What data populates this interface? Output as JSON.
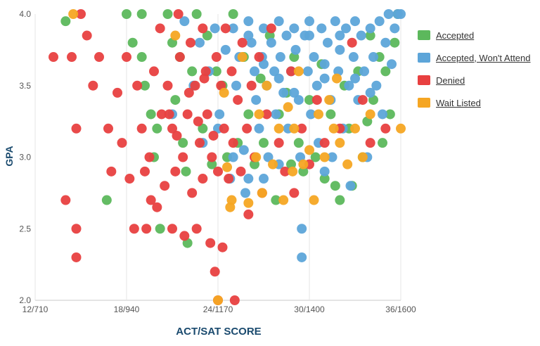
{
  "chart_data": {
    "type": "scatter",
    "title": "",
    "xlabel": "ACT/SAT SCORE",
    "ylabel": "GPA",
    "x_ticks": [
      "12/710",
      "18/940",
      "24/1170",
      "30/1400",
      "36/1600"
    ],
    "x_tick_values": [
      12,
      18,
      24,
      30,
      36
    ],
    "y_ticks": [
      "2.0",
      "2.5",
      "3.0",
      "3.5",
      "4.0"
    ],
    "y_tick_values": [
      2.0,
      2.5,
      3.0,
      3.5,
      4.0
    ],
    "xlim": [
      12,
      36
    ],
    "ylim": [
      2.0,
      4.0
    ],
    "x_unit": "ACT composite (SAT equivalent)",
    "grid": "vertical lines at x ticks",
    "legend_position": "right",
    "series": [
      {
        "name": "Accepted",
        "color": "#5cb85c",
        "points": [
          [
            14,
            3.95
          ],
          [
            16.7,
            2.7
          ],
          [
            18,
            4.0
          ],
          [
            18.4,
            3.8
          ],
          [
            19,
            4.0
          ],
          [
            19,
            3.7
          ],
          [
            19.2,
            3.5
          ],
          [
            19.6,
            3.3
          ],
          [
            19.8,
            3.0
          ],
          [
            20,
            3.2
          ],
          [
            20.2,
            2.5
          ],
          [
            20.7,
            4.0
          ],
          [
            21,
            3.8
          ],
          [
            21.2,
            3.4
          ],
          [
            21.5,
            3.7
          ],
          [
            21.7,
            3.1
          ],
          [
            21.9,
            2.9
          ],
          [
            22,
            2.4
          ],
          [
            22.3,
            3.6
          ],
          [
            22.6,
            4.0
          ],
          [
            23,
            3.2
          ],
          [
            23.3,
            3.85
          ],
          [
            23.6,
            2.95
          ],
          [
            23.9,
            3.6
          ],
          [
            24.3,
            3.5
          ],
          [
            24.6,
            3.0
          ],
          [
            25,
            4.0
          ],
          [
            25.3,
            3.1
          ],
          [
            25.7,
            3.7
          ],
          [
            26,
            3.3
          ],
          [
            26.4,
            2.95
          ],
          [
            26.8,
            3.55
          ],
          [
            27,
            3.1
          ],
          [
            27.4,
            3.85
          ],
          [
            27.8,
            2.7
          ],
          [
            28,
            3.3
          ],
          [
            28.5,
            3.45
          ],
          [
            28.8,
            2.95
          ],
          [
            29,
            3.7
          ],
          [
            29.3,
            3.1
          ],
          [
            29.6,
            2.9
          ],
          [
            30,
            3.4
          ],
          [
            30.4,
            3.0
          ],
          [
            30.8,
            3.65
          ],
          [
            31,
            2.85
          ],
          [
            31.4,
            3.3
          ],
          [
            31.7,
            2.8
          ],
          [
            32,
            2.7
          ],
          [
            32.3,
            3.5
          ],
          [
            32.6,
            3.2
          ],
          [
            32.8,
            2.8
          ],
          [
            33.2,
            3.6
          ],
          [
            33.5,
            3.0
          ],
          [
            33.8,
            3.25
          ],
          [
            34,
            3.85
          ],
          [
            34.2,
            3.4
          ],
          [
            34.6,
            3.7
          ],
          [
            34.8,
            3.1
          ],
          [
            35,
            3.6
          ],
          [
            35.3,
            3.3
          ],
          [
            35.6,
            3.8
          ],
          [
            35.8,
            4.0
          ]
        ]
      },
      {
        "name": "Accepted, Won't Attend",
        "color": "#5da5d9",
        "points": [
          [
            21,
            3.3
          ],
          [
            21.8,
            3.95
          ],
          [
            22.4,
            3.5
          ],
          [
            22.8,
            3.8
          ],
          [
            23,
            3.1
          ],
          [
            23.4,
            3.6
          ],
          [
            23.8,
            3.9
          ],
          [
            24.1,
            3.3
          ],
          [
            24.5,
            3.75
          ],
          [
            24.8,
            2.85
          ],
          [
            25,
            3.9
          ],
          [
            25.2,
            3.5
          ],
          [
            25.4,
            3.7
          ],
          [
            25.7,
            3.05
          ],
          [
            25.8,
            2.75
          ],
          [
            26,
            3.95
          ],
          [
            26.2,
            3.8
          ],
          [
            26.4,
            3.6
          ],
          [
            26.5,
            3.4
          ],
          [
            26.7,
            3.2
          ],
          [
            26.9,
            3.7
          ],
          [
            27,
            3.9
          ],
          [
            27.2,
            3.5
          ],
          [
            27.3,
            3.0
          ],
          [
            27.5,
            3.8
          ],
          [
            27.7,
            3.6
          ],
          [
            27.8,
            3.3
          ],
          [
            28,
            3.95
          ],
          [
            28.1,
            3.7
          ],
          [
            28.3,
            3.45
          ],
          [
            28.5,
            3.85
          ],
          [
            28.6,
            3.2
          ],
          [
            28.8,
            3.6
          ],
          [
            29,
            3.9
          ],
          [
            29.1,
            3.75
          ],
          [
            29.3,
            3.4
          ],
          [
            29.4,
            3.0
          ],
          [
            29.5,
            2.3
          ],
          [
            29.5,
            2.5
          ],
          [
            29.7,
            3.85
          ],
          [
            29.9,
            3.6
          ],
          [
            30,
            3.95
          ],
          [
            30.1,
            3.3
          ],
          [
            30.3,
            3.7
          ],
          [
            30.5,
            3.5
          ],
          [
            30.6,
            3.1
          ],
          [
            30.8,
            3.9
          ],
          [
            31,
            3.65
          ],
          [
            31,
            2.9
          ],
          [
            31.2,
            3.8
          ],
          [
            31.4,
            3.4
          ],
          [
            31.5,
            3.0
          ],
          [
            31.7,
            3.95
          ],
          [
            31.9,
            3.6
          ],
          [
            32,
            3.75
          ],
          [
            32.2,
            3.2
          ],
          [
            32.4,
            3.9
          ],
          [
            32.6,
            3.5
          ],
          [
            32.7,
            2.8
          ],
          [
            32.9,
            3.7
          ],
          [
            33,
            3.95
          ],
          [
            33.2,
            3.4
          ],
          [
            33.4,
            3.85
          ],
          [
            33.6,
            3.6
          ],
          [
            33.8,
            3.0
          ],
          [
            34,
            3.9
          ],
          [
            34.2,
            3.7
          ],
          [
            34.4,
            3.5
          ],
          [
            34.6,
            3.95
          ],
          [
            34.8,
            3.3
          ],
          [
            35,
            3.8
          ],
          [
            35.2,
            4.0
          ],
          [
            35.4,
            3.65
          ],
          [
            35.6,
            3.9
          ],
          [
            35.8,
            4.0
          ],
          [
            36,
            4.0
          ],
          [
            26,
            3.85
          ],
          [
            27,
            3.65
          ],
          [
            28,
            3.55
          ],
          [
            29,
            3.45
          ],
          [
            30,
            3.85
          ],
          [
            31,
            3.55
          ],
          [
            32,
            3.85
          ],
          [
            33,
            3.55
          ],
          [
            34,
            3.45
          ],
          [
            24,
            3.2
          ],
          [
            25,
            3.0
          ],
          [
            26,
            2.85
          ],
          [
            27,
            2.85
          ],
          [
            28,
            2.95
          ]
        ]
      },
      {
        "name": "Denied",
        "color": "#e84040",
        "points": [
          [
            13.2,
            3.7
          ],
          [
            14,
            2.7
          ],
          [
            14.4,
            3.7
          ],
          [
            14.7,
            2.5
          ],
          [
            14.7,
            2.3
          ],
          [
            14.7,
            3.2
          ],
          [
            15,
            4.0
          ],
          [
            15.4,
            3.85
          ],
          [
            15.8,
            3.5
          ],
          [
            16.2,
            3.7
          ],
          [
            16.8,
            3.2
          ],
          [
            17,
            2.9
          ],
          [
            17.4,
            3.45
          ],
          [
            17.7,
            3.1
          ],
          [
            18,
            3.7
          ],
          [
            18.2,
            2.85
          ],
          [
            18.5,
            2.5
          ],
          [
            18.7,
            3.5
          ],
          [
            19,
            3.2
          ],
          [
            19.2,
            2.9
          ],
          [
            19.3,
            2.5
          ],
          [
            19.5,
            3.0
          ],
          [
            19.6,
            2.7
          ],
          [
            19.8,
            3.6
          ],
          [
            20,
            2.65
          ],
          [
            20.2,
            3.9
          ],
          [
            20.3,
            3.3
          ],
          [
            20.5,
            2.8
          ],
          [
            20.7,
            3.5
          ],
          [
            21,
            3.2
          ],
          [
            21,
            2.5
          ],
          [
            21.2,
            2.9
          ],
          [
            21.4,
            4.0
          ],
          [
            21.5,
            3.7
          ],
          [
            21.7,
            3.0
          ],
          [
            21.8,
            2.45
          ],
          [
            22,
            3.3
          ],
          [
            22.2,
            3.8
          ],
          [
            22.3,
            2.75
          ],
          [
            22.5,
            3.5
          ],
          [
            22.6,
            2.5
          ],
          [
            22.8,
            3.1
          ],
          [
            23,
            3.9
          ],
          [
            23,
            2.85
          ],
          [
            23.2,
            3.6
          ],
          [
            23.3,
            3.3
          ],
          [
            23.5,
            2.4
          ],
          [
            23.6,
            3.0
          ],
          [
            23.8,
            2.2
          ],
          [
            23.9,
            3.7
          ],
          [
            24,
            2.9
          ],
          [
            24,
            2.0
          ],
          [
            24.2,
            3.5
          ],
          [
            24.3,
            2.37
          ],
          [
            24.4,
            3.2
          ],
          [
            24.5,
            3.9
          ],
          [
            24.7,
            2.85
          ],
          [
            24.9,
            3.6
          ],
          [
            25,
            3.1
          ],
          [
            25.1,
            2.0
          ],
          [
            25.3,
            3.4
          ],
          [
            25.5,
            2.9
          ],
          [
            25.6,
            3.8
          ],
          [
            25.9,
            3.2
          ],
          [
            26,
            2.6
          ],
          [
            26.2,
            3.5
          ],
          [
            26.4,
            3.0
          ],
          [
            26.7,
            3.7
          ],
          [
            26.9,
            2.75
          ],
          [
            27.2,
            3.3
          ],
          [
            27.5,
            3.9
          ],
          [
            28,
            3.1
          ],
          [
            28.4,
            2.9
          ],
          [
            28.8,
            3.6
          ],
          [
            29,
            2.75
          ],
          [
            29.5,
            3.2
          ],
          [
            30,
            2.95
          ],
          [
            30.5,
            3.4
          ],
          [
            31,
            3.1
          ],
          [
            32,
            3.2
          ],
          [
            32.8,
            3.8
          ],
          [
            33.5,
            3.4
          ],
          [
            34,
            3.1
          ],
          [
            35,
            3.2
          ],
          [
            20.8,
            3.3
          ],
          [
            21.3,
            3.15
          ],
          [
            22.1,
            3.45
          ],
          [
            22.7,
            3.25
          ],
          [
            23.1,
            3.55
          ],
          [
            23.7,
            3.15
          ]
        ]
      },
      {
        "name": "Wait Listed",
        "color": "#f5a623",
        "points": [
          [
            14.5,
            4.0
          ],
          [
            21.2,
            3.85
          ],
          [
            24,
            2.0
          ],
          [
            24.4,
            3.45
          ],
          [
            24.6,
            2.93
          ],
          [
            24.8,
            2.65
          ],
          [
            24.9,
            2.7
          ],
          [
            25.6,
            3.7
          ],
          [
            26,
            2.68
          ],
          [
            26.5,
            3.0
          ],
          [
            26.7,
            3.3
          ],
          [
            26.9,
            2.75
          ],
          [
            27.2,
            3.5
          ],
          [
            27.6,
            2.95
          ],
          [
            28,
            3.2
          ],
          [
            28.3,
            2.7
          ],
          [
            28.6,
            3.35
          ],
          [
            28.9,
            2.9
          ],
          [
            29,
            3.2
          ],
          [
            29.3,
            3.6
          ],
          [
            29.6,
            2.95
          ],
          [
            30,
            3.05
          ],
          [
            30.3,
            2.7
          ],
          [
            30.6,
            3.3
          ],
          [
            31,
            3.0
          ],
          [
            31.3,
            3.4
          ],
          [
            31.6,
            3.2
          ],
          [
            31.8,
            3.55
          ],
          [
            32,
            3.1
          ],
          [
            32.5,
            2.95
          ],
          [
            33,
            3.2
          ],
          [
            33.5,
            3.0
          ],
          [
            34,
            3.3
          ],
          [
            36,
            3.2
          ]
        ]
      }
    ]
  }
}
